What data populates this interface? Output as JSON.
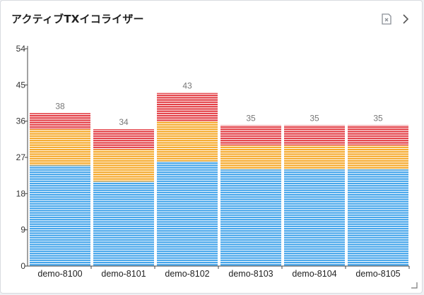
{
  "header": {
    "title": "アクティブTXイコライザー"
  },
  "icons": {
    "export": "export-icon",
    "next": "chevron-right-icon"
  },
  "colors": {
    "normal": "#3ea2ea",
    "slow": "#f5a623",
    "very_slow": "#e2383f",
    "axis": "#444444",
    "value_label": "#777777"
  },
  "chart_data": {
    "type": "bar",
    "stacked": true,
    "categories": [
      "demo-8100",
      "demo-8101",
      "demo-8102",
      "demo-8103",
      "demo-8104",
      "demo-8105"
    ],
    "series": [
      {
        "values": [
          25,
          21,
          26,
          24,
          24,
          24
        ]
      },
      {
        "values": [
          9,
          8,
          10,
          6,
          6,
          6
        ]
      },
      {
        "values": [
          4,
          5,
          7,
          5,
          5,
          5
        ]
      }
    ],
    "totals": [
      38,
      34,
      43,
      35,
      35,
      35
    ],
    "ylim": [
      0,
      54
    ],
    "yticks": [
      0,
      9,
      18,
      27,
      36,
      45,
      54
    ],
    "grid": false
  }
}
